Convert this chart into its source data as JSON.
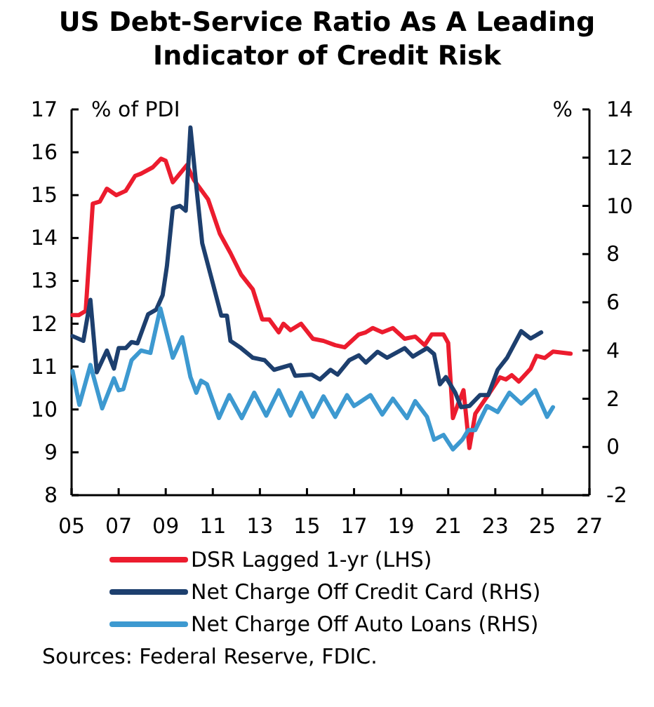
{
  "chart_data": {
    "type": "line",
    "title": "US Debt-Service Ratio As A Leading Indicator of Credit Risk",
    "ylabel": "% of PDI",
    "y2label": "%",
    "xlim": [
      2005,
      2027
    ],
    "xticks": [
      {
        "value": 2005,
        "label": "05"
      },
      {
        "value": 2007,
        "label": "07"
      },
      {
        "value": 2009,
        "label": "09"
      },
      {
        "value": 2011,
        "label": "11"
      },
      {
        "value": 2013,
        "label": "13"
      },
      {
        "value": 2015,
        "label": "15"
      },
      {
        "value": 2017,
        "label": "17"
      },
      {
        "value": 2019,
        "label": "19"
      },
      {
        "value": 2021,
        "label": "21"
      },
      {
        "value": 2023,
        "label": "23"
      },
      {
        "value": 2025,
        "label": "25"
      },
      {
        "value": 2027,
        "label": "27"
      }
    ],
    "ylim": [
      8,
      17
    ],
    "yticks": [
      8,
      9,
      10,
      11,
      12,
      13,
      14,
      15,
      16,
      17
    ],
    "y2lim": [
      -2,
      14
    ],
    "y2ticks": [
      -2,
      0,
      2,
      4,
      6,
      8,
      10,
      12,
      14
    ],
    "grid": false,
    "legend": "bottom",
    "line_style": "solid",
    "marker": "none",
    "series": [
      {
        "name": "DSR Lagged 1-yr (LHS)",
        "color": "#ec1c2e",
        "x": [
          2005.04,
          2005.3,
          2005.6,
          2005.9,
          2006.2,
          2006.5,
          2006.9,
          2007.3,
          2007.7,
          2007.95,
          2008.45,
          2008.8,
          2009.0,
          2009.3,
          2009.9,
          2010.2,
          2010.8,
          2011.3,
          2011.75,
          2012.2,
          2012.7,
          2013.1,
          2013.4,
          2013.8,
          2014.0,
          2014.3,
          2014.75,
          2015.25,
          2015.7,
          2016.2,
          2016.6,
          2017.2,
          2017.5,
          2017.8,
          2018.2,
          2018.65,
          2019.15,
          2019.6,
          2020.0,
          2020.3,
          2020.8,
          2021.0,
          2021.2,
          2021.4,
          2021.65,
          2021.9,
          2022.15,
          2022.65,
          2023.2,
          2023.45,
          2023.7,
          2024.0,
          2024.5,
          2024.75,
          2025.1,
          2025.45,
          2026.2
        ],
        "values": [
          12.2,
          12.2,
          12.3,
          14.8,
          14.85,
          15.15,
          15.0,
          15.1,
          15.45,
          15.5,
          15.65,
          15.85,
          15.8,
          15.3,
          15.7,
          15.35,
          14.9,
          14.1,
          13.65,
          13.15,
          12.8,
          12.1,
          12.1,
          11.8,
          12.0,
          11.85,
          12.0,
          11.65,
          11.6,
          11.5,
          11.45,
          11.75,
          11.8,
          11.9,
          11.8,
          11.9,
          11.65,
          11.7,
          11.5,
          11.75,
          11.75,
          11.55,
          9.8,
          10.1,
          10.45,
          9.1,
          9.9,
          10.3,
          10.75,
          10.7,
          10.8,
          10.65,
          10.95,
          11.25,
          11.2,
          11.35,
          11.3
        ]
      },
      {
        "name": "Net Charge Off Credit Card (RHS)",
        "color": "#1d3f6e",
        "axis": "y2",
        "x": [
          2005.04,
          2005.5,
          2005.8,
          2006.07,
          2006.5,
          2006.8,
          2007.0,
          2007.3,
          2007.55,
          2007.8,
          2008.25,
          2008.6,
          2008.87,
          2009.05,
          2009.3,
          2009.6,
          2009.85,
          2010.05,
          2010.3,
          2010.55,
          2010.97,
          2011.36,
          2011.6,
          2011.75,
          2012.2,
          2012.7,
          2013.2,
          2013.6,
          2014.3,
          2014.5,
          2015.2,
          2015.55,
          2016.0,
          2016.3,
          2016.8,
          2017.2,
          2017.5,
          2018.0,
          2018.4,
          2019.15,
          2019.5,
          2020.1,
          2020.4,
          2020.65,
          2020.9,
          2021.3,
          2021.55,
          2021.9,
          2022.35,
          2022.7,
          2023.1,
          2023.5,
          2024.1,
          2024.5,
          2024.95
        ],
        "values": [
          4.6,
          4.4,
          6.1,
          3.1,
          4.0,
          3.25,
          4.1,
          4.1,
          4.35,
          4.3,
          5.5,
          5.7,
          6.3,
          7.5,
          9.9,
          10.0,
          9.8,
          13.25,
          10.8,
          8.45,
          6.9,
          5.45,
          5.45,
          4.4,
          4.1,
          3.7,
          3.6,
          3.2,
          3.4,
          2.95,
          3.0,
          2.8,
          3.2,
          3.0,
          3.6,
          3.8,
          3.5,
          3.95,
          3.7,
          4.1,
          3.75,
          4.1,
          3.85,
          2.6,
          2.9,
          2.25,
          1.65,
          1.7,
          2.15,
          2.15,
          3.2,
          3.7,
          4.8,
          4.5,
          4.75
        ]
      },
      {
        "name": "Net Charge Off Auto Loans (RHS)",
        "color": "#3d99d0",
        "axis": "y2",
        "x": [
          2005.04,
          2005.33,
          2005.8,
          2006.3,
          2006.8,
          2007.0,
          2007.2,
          2007.55,
          2007.95,
          2008.35,
          2008.77,
          2009.3,
          2009.7,
          2010.05,
          2010.3,
          2010.5,
          2010.75,
          2011.26,
          2011.7,
          2012.23,
          2012.76,
          2013.27,
          2013.8,
          2014.3,
          2014.75,
          2015.25,
          2015.7,
          2016.2,
          2016.7,
          2017.0,
          2017.7,
          2018.2,
          2018.65,
          2019.25,
          2019.6,
          2020.1,
          2020.4,
          2020.8,
          2021.2,
          2021.6,
          2021.85,
          2022.15,
          2022.65,
          2023.1,
          2023.6,
          2024.1,
          2024.7,
          2025.2,
          2025.45
        ],
        "values": [
          3.15,
          1.75,
          3.4,
          1.6,
          2.85,
          2.35,
          2.4,
          3.6,
          4.0,
          3.9,
          5.75,
          3.7,
          4.55,
          2.9,
          2.25,
          2.75,
          2.6,
          1.2,
          2.15,
          1.2,
          2.25,
          1.3,
          2.35,
          1.3,
          2.25,
          1.25,
          2.1,
          1.25,
          2.15,
          1.7,
          2.15,
          1.35,
          2.0,
          1.2,
          1.9,
          1.25,
          0.3,
          0.5,
          -0.1,
          0.3,
          0.7,
          0.7,
          1.7,
          1.45,
          2.25,
          1.8,
          2.35,
          1.25,
          1.65
        ]
      }
    ],
    "annotations": [
      "Sources: Federal Reserve, FDIC."
    ]
  }
}
